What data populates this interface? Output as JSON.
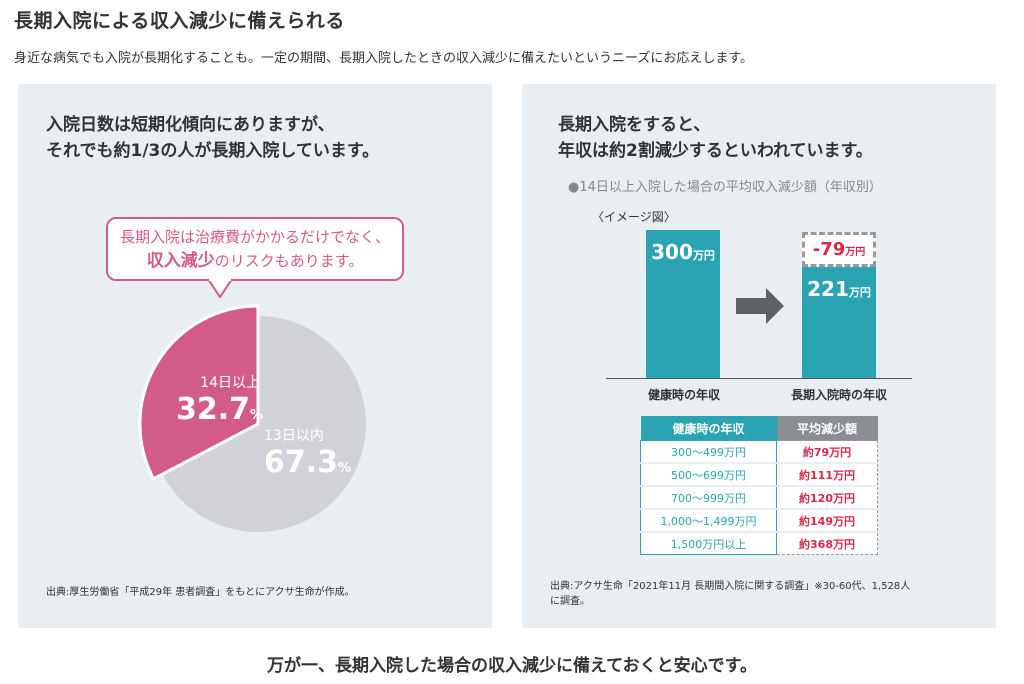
{
  "page": {
    "title": "長期入院による収入減少に備えられる",
    "description": "身近な病気でも入院が長期化することも。一定の期間、長期入院したときの収入減少に備えたいというニーズにお応えします。",
    "bottom_message": "万が一、長期入院した場合の収入減少に備えておくと安心です。"
  },
  "left": {
    "heading_line1": "入院日数は短期化傾向にありますが、",
    "heading_line2": "それでも約1/3の人が長期入院しています。",
    "bubble_line1": "長期入院は治療費がかかるだけでなく、",
    "bubble_strong": "収入減少",
    "bubble_rest": "のリスクもあります。",
    "pie": {
      "long_label": "14日以上",
      "long_value": "32.7",
      "short_label": "13日以内",
      "short_value": "67.3",
      "percent_sign": "%",
      "long_fraction": 0.327,
      "long_color": "#d35b8a",
      "short_color": "#d2d3da"
    },
    "source": "出典:厚生労働省「平成29年 患者調査」をもとにアクサ生命が作成。"
  },
  "right": {
    "heading_line1": "長期入院をすると、",
    "heading_line2": "年収は約2割減少するといわれています。",
    "subtitle": "●14日以上入院した場合の平均収入減少額（年収別）",
    "image_label": "〈イメージ図〉",
    "bars": {
      "healthy_value": "300",
      "unit": "万円",
      "hospital_value": "221",
      "reduction_value": "-79",
      "healthy_label": "健康時の年収",
      "hospital_label": "長期入院時の年収",
      "bar_color": "#2aa3b3",
      "reduction_color": "#d62847"
    },
    "table": {
      "headers": [
        "健康時の年収",
        "平均減少額"
      ],
      "rows": [
        [
          "300〜499万円",
          "約79万円"
        ],
        [
          "500〜699万円",
          "約111万円"
        ],
        [
          "700〜999万円",
          "約120万円"
        ],
        [
          "1,000〜1,499万円",
          "約149万円"
        ],
        [
          "1,500万円以上",
          "約368万円"
        ]
      ],
      "header_color_1": "#2aa3b3",
      "header_color_2": "#8a8f96"
    },
    "source_line1": "出典:アクサ生命「2021年11月 長期間入院に関する調査」※30-60代、1,528人",
    "source_line2": "に調査。"
  }
}
